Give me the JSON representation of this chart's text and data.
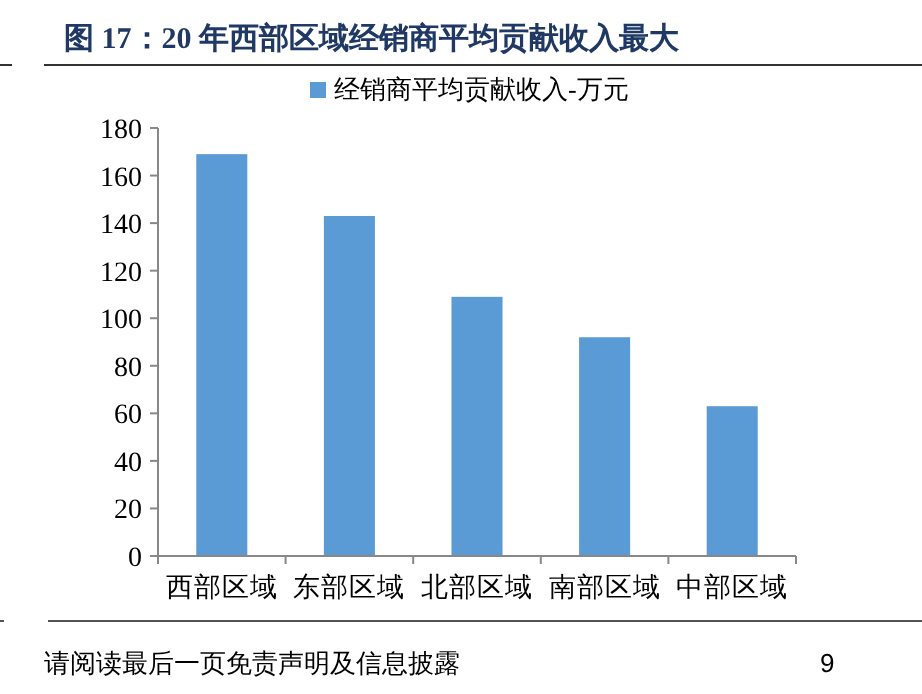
{
  "chart_data": {
    "type": "bar",
    "title": "图 17：20 年西部区域经销商平均贡献收入最大",
    "categories": [
      "西部区域",
      "东部区域",
      "北部区域",
      "南部区域",
      "中部区域"
    ],
    "series": [
      {
        "name": "经销商平均贡献收入-万元",
        "color": "#5b9bd5",
        "values": [
          169,
          143,
          109,
          92,
          63
        ]
      }
    ],
    "ylim": [
      0,
      180
    ],
    "yticks": [
      0,
      20,
      40,
      60,
      80,
      100,
      120,
      140,
      160,
      180
    ],
    "legend": "top",
    "annotations": [
      "请阅读最后一页免责声明及信息披露",
      "9"
    ]
  }
}
